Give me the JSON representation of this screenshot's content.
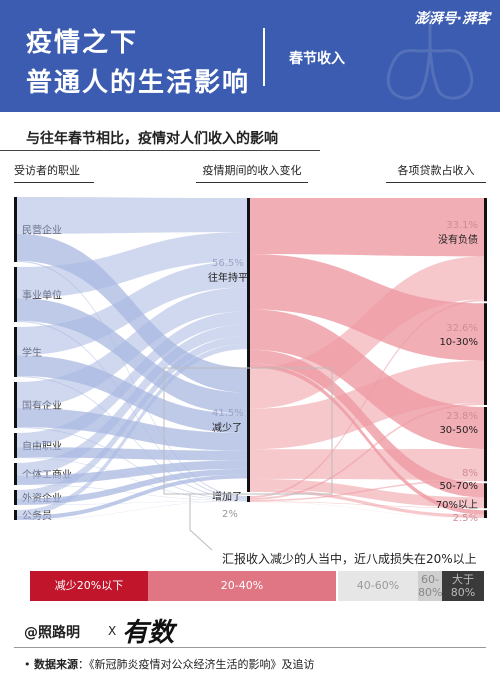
{
  "header": {
    "title_line1": "疫情之下",
    "title_line2": "普通人的生活影响",
    "topic": "春节收入",
    "brand": "澎湃号·湃客"
  },
  "subtitle": "与往年春节相比，疫情对人们收入的影响",
  "colors": {
    "header_bg": "#3b5cb0",
    "left_flow": "#a9b8e2",
    "right_flow": "#ee9aa3"
  },
  "chart_data": {
    "type": "sankey",
    "columns": [
      "受访者的职业",
      "疫情期间的收入变化",
      "各项贷款占收入"
    ],
    "occupations": [
      "民营企业",
      "事业单位",
      "学生",
      "国有企业",
      "自由职业",
      "个体工商业",
      "外资企业",
      "公务员"
    ],
    "income_change": [
      {
        "label": "往年持平",
        "pct": "56.5%",
        "value": 56.5
      },
      {
        "label": "减少了",
        "pct": "41.5%",
        "value": 41.5
      },
      {
        "label": "增加了",
        "pct": "2%",
        "value": 2
      }
    ],
    "loan_ratio": [
      {
        "label": "没有负债",
        "pct": "33.1%",
        "value": 33.1
      },
      {
        "label": "10-30%",
        "pct": "32.6%",
        "value": 32.6
      },
      {
        "label": "30-50%",
        "pct": "23.8%",
        "value": 23.8
      },
      {
        "label": "50-70%",
        "pct": "8%",
        "value": 8
      },
      {
        "label": "70%以上",
        "pct": "2.5%",
        "value": 2.5
      }
    ]
  },
  "caption": "汇报收入减少的人当中，近八成损失在20%以上",
  "legend": [
    {
      "label": "减少20%以下",
      "color": "#c0152a",
      "text_color": "#ffffff"
    },
    {
      "label": "20-40%",
      "color": "#e07583",
      "text_color": "#ffffff"
    },
    {
      "label": "40-60%",
      "color": "#e6e6e6",
      "text_color": "#9a9a9a"
    },
    {
      "label": "60-80%",
      "color": "#cfcfcf",
      "text_color": "#888888"
    },
    {
      "label": "大于80%",
      "color": "#3a3a3a",
      "text_color": "#bbbbbb"
    }
  ],
  "footer": {
    "credit": "@照路明",
    "x": "X",
    "logo": "有数",
    "source_label": "数据来源",
    "source_text": "：《新冠肺炎疫情对公众经济生活的影响》及追访"
  }
}
